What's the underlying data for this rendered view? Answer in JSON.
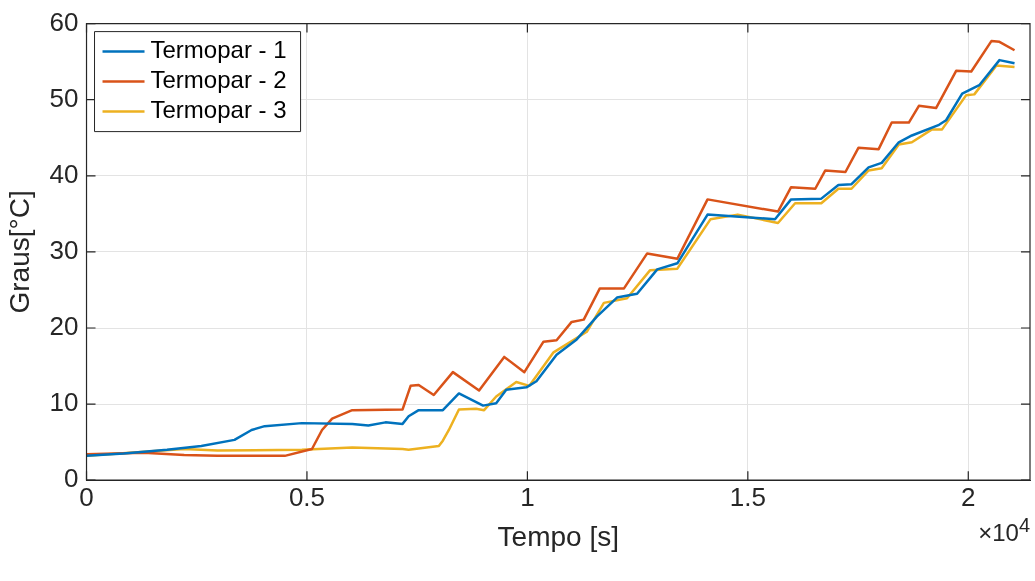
{
  "chart_data": {
    "type": "line",
    "xlabel": "Tempo [s]",
    "ylabel": "Graus[°C]",
    "xlim": [
      0,
      2.14
    ],
    "ylim": [
      0,
      60
    ],
    "xticks": [
      0,
      0.5,
      1,
      1.5,
      2
    ],
    "yticks": [
      0,
      10,
      20,
      30,
      40,
      50,
      60
    ],
    "grid": true,
    "legend": "top left",
    "marker": "none",
    "line_style": "solid",
    "annotations": [
      "×10$^{4}$"
    ],
    "series": [
      {
        "name": "Termopar - 1",
        "color": "#0072bd",
        "x": [
          0,
          0.0845,
          0.1826,
          0.2603,
          0.3356,
          0.3744,
          0.4041,
          0.4886,
          0.6027,
          0.6392,
          0.6781,
          0.7169,
          0.7306,
          0.7534,
          0.8082,
          0.8447,
          0.8995,
          0.9292,
          0.952,
          0.9977,
          1.0205,
          1.0662,
          1.1118,
          1.1575,
          1.2032,
          1.2488,
          1.2945,
          1.3401,
          1.4086,
          1.5616,
          1.5981,
          1.6666,
          1.7054,
          1.7351,
          1.7739,
          1.8036,
          1.8424,
          1.8721,
          1.9337,
          1.9497,
          1.9862,
          2.025,
          2.0707,
          2.1049
        ],
        "values": [
          3.2,
          3.5,
          4.0,
          4.5,
          5.3,
          6.6,
          7.1,
          7.5,
          7.4,
          7.2,
          7.6,
          7.4,
          8.4,
          9.2,
          9.2,
          11.4,
          9.8,
          10.1,
          11.9,
          12.2,
          13.0,
          16.5,
          18.5,
          21.5,
          24.0,
          24.5,
          27.7,
          28.5,
          34.9,
          34.3,
          36.9,
          37.0,
          38.8,
          38.9,
          41.1,
          41.7,
          44.4,
          45.3,
          46.7,
          47.3,
          50.8,
          51.9,
          55.2,
          54.8
        ]
      },
      {
        "name": "Termopar - 2",
        "color": "#d95319",
        "x": [
          0,
          0.1301,
          0.2215,
          0.2968,
          0.4498,
          0.5114,
          0.5342,
          0.5571,
          0.6027,
          0.7169,
          0.7351,
          0.7534,
          0.7876,
          0.831,
          0.8904,
          0.9474,
          0.9931,
          1.0365,
          1.0662,
          1.1004,
          1.1278,
          1.1643,
          1.2191,
          1.2717,
          1.3401,
          1.4086,
          1.5684,
          1.5981,
          1.6529,
          1.6757,
          1.7214,
          1.7511,
          1.7967,
          1.8264,
          1.8652,
          1.888,
          1.9269,
          1.9725,
          2.0068,
          2.0524,
          2.0707,
          2.1049
        ],
        "values": [
          3.4,
          3.6,
          3.3,
          3.2,
          3.2,
          4.1,
          6.6,
          8.1,
          9.2,
          9.3,
          12.4,
          12.5,
          11.2,
          14.2,
          11.8,
          16.2,
          14.2,
          18.2,
          18.4,
          20.8,
          21.1,
          25.2,
          25.2,
          29.8,
          29.1,
          36.9,
          35.3,
          38.5,
          38.3,
          40.7,
          40.5,
          43.7,
          43.5,
          47.0,
          47.0,
          49.2,
          48.9,
          53.8,
          53.7,
          57.7,
          57.6,
          56.5
        ]
      },
      {
        "name": "Termopar - 3",
        "color": "#edb120",
        "x": [
          0,
          0.2215,
          0.2968,
          0.4886,
          0.6027,
          0.7169,
          0.7306,
          0.7991,
          0.8082,
          0.8219,
          0.8447,
          0.8835,
          0.9018,
          0.9292,
          0.9748,
          1.0045,
          1.0593,
          1.1347,
          1.1735,
          1.226,
          1.2785,
          1.3401,
          1.4155,
          1.4771,
          1.5684,
          1.6072,
          1.6666,
          1.7054,
          1.7351,
          1.7739,
          1.8036,
          1.8424,
          1.8721,
          1.9177,
          1.9406,
          1.9954,
          2.0137,
          2.0639,
          2.1049
        ],
        "values": [
          3.2,
          4.1,
          3.9,
          4.0,
          4.3,
          4.1,
          4.0,
          4.5,
          5.2,
          6.6,
          9.3,
          9.4,
          9.2,
          11.0,
          12.9,
          12.4,
          16.8,
          19.5,
          23.3,
          23.9,
          27.6,
          27.8,
          34.3,
          34.9,
          33.8,
          36.4,
          36.4,
          38.3,
          38.3,
          40.7,
          41.0,
          44.1,
          44.4,
          46.1,
          46.1,
          50.6,
          50.7,
          54.5,
          54.3
        ]
      }
    ]
  }
}
